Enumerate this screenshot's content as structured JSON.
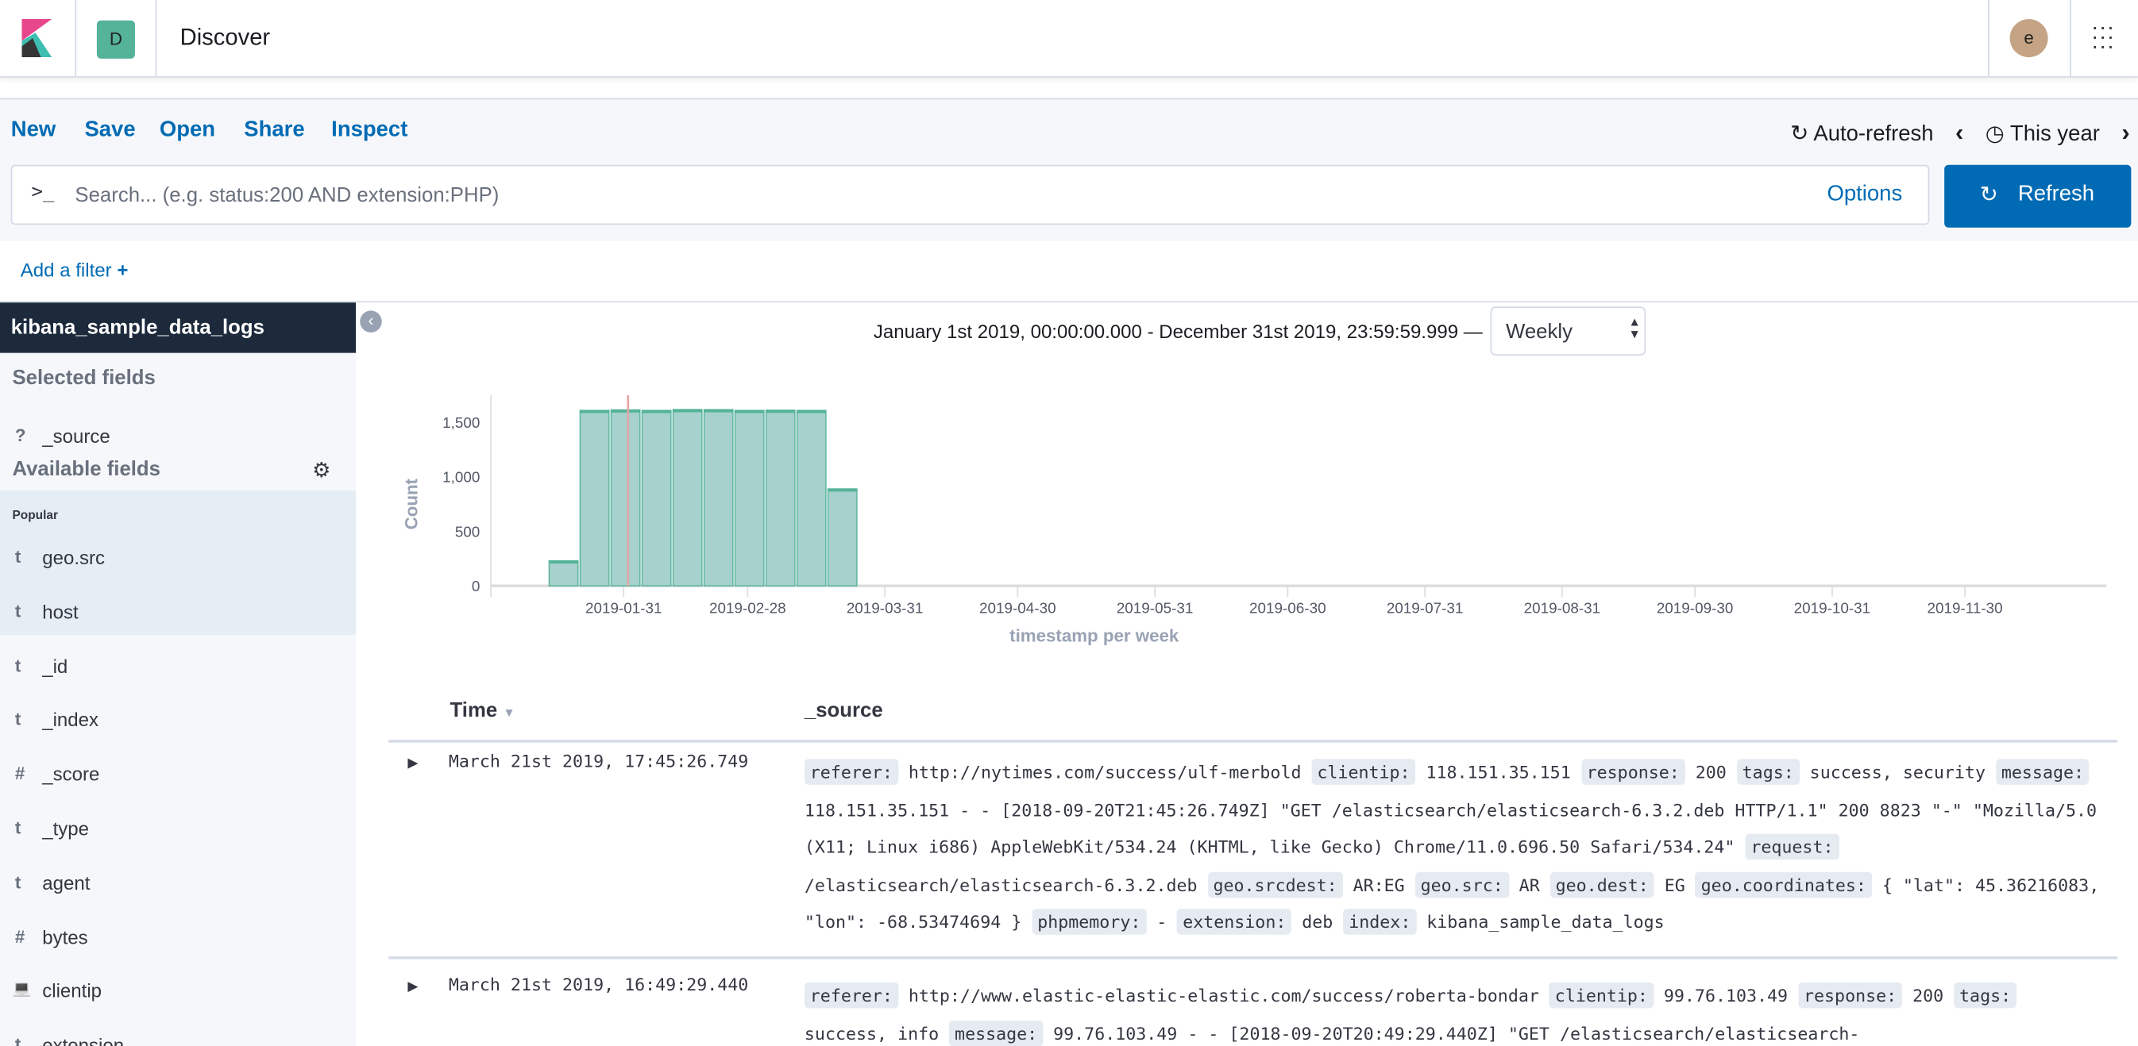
{
  "header": {
    "app_letter": "D",
    "title": "Discover",
    "avatar": "e"
  },
  "menu": {
    "items": [
      "New",
      "Save",
      "Open",
      "Share",
      "Inspect"
    ],
    "auto_refresh": "Auto-refresh",
    "time_range": "This year"
  },
  "search": {
    "placeholder": "Search... (e.g. status:200 AND extension:PHP)",
    "options": "Options",
    "refresh": "Refresh"
  },
  "filter": {
    "add": "Add a filter"
  },
  "sidebar": {
    "index": "kibana_sample_data_logs",
    "selected_title": "Selected fields",
    "selected": [
      {
        "type": "?",
        "name": "_source"
      }
    ],
    "available_title": "Available fields",
    "popular": "Popular",
    "fields": [
      {
        "type": "t",
        "name": "geo.src"
      },
      {
        "type": "t",
        "name": "host"
      },
      {
        "type": "t",
        "name": "_id"
      },
      {
        "type": "t",
        "name": "_index"
      },
      {
        "type": "#",
        "name": "_score"
      },
      {
        "type": "t",
        "name": "_type"
      },
      {
        "type": "t",
        "name": "agent"
      },
      {
        "type": "#",
        "name": "bytes"
      },
      {
        "type": "ip",
        "name": "clientip"
      },
      {
        "type": "t",
        "name": "extension"
      }
    ]
  },
  "histogram": {
    "range": "January 1st 2019, 00:00:00.000 - December 31st 2019, 23:59:59.999 —",
    "interval": "Weekly"
  },
  "chart_data": {
    "type": "bar",
    "xlabel": "timestamp per week",
    "ylabel": "Count",
    "ylim": [
      0,
      1750
    ],
    "xlim": [
      "2019-01-01",
      "2019-12-31"
    ],
    "yticks": [
      "0",
      "500",
      "1,000",
      "1,500"
    ],
    "xticks": [
      "2019-01-31",
      "2019-02-28",
      "2019-03-31",
      "2019-04-30",
      "2019-05-31",
      "2019-06-30",
      "2019-07-31",
      "2019-08-31",
      "2019-09-30",
      "2019-10-31",
      "2019-11-30"
    ],
    "x": [
      "2019-01-14",
      "2019-01-21",
      "2019-01-28",
      "2019-02-04",
      "2019-02-11",
      "2019-02-18",
      "2019-02-25",
      "2019-03-04",
      "2019-03-11",
      "2019-03-18"
    ],
    "values": [
      230,
      1610,
      1615,
      1610,
      1618,
      1617,
      1610,
      1612,
      1610,
      890
    ],
    "current_time_marker": "2019-02-01",
    "bar_color": "#a6d1cd",
    "bar_edge": "#54b399",
    "grid": false
  },
  "table": {
    "headers": [
      "Time",
      "_source"
    ],
    "rows": [
      {
        "time": "March 21st 2019, 17:45:26.749",
        "fields": [
          [
            "referer:",
            "http://nytimes.com/success/ulf-merbold"
          ],
          [
            "clientip:",
            "118.151.35.151"
          ],
          [
            "response:",
            "200"
          ],
          [
            "tags:",
            "success, security"
          ],
          [
            "message:",
            "118.151.35.151 - - [2018-09-20T21:45:26.749Z] \"GET /elasticsearch/elasticsearch-6.3.2.deb HTTP/1.1\" 200 8823 \"-\" \"Mozilla/5.0 (X11; Linux i686) AppleWebKit/534.24 (KHTML, like Gecko) Chrome/11.0.696.50 Safari/534.24\""
          ],
          [
            "request:",
            "/elasticsearch/elasticsearch-6.3.2.deb"
          ],
          [
            "geo.srcdest:",
            "AR:EG"
          ],
          [
            "geo.src:",
            "AR"
          ],
          [
            "geo.dest:",
            "EG"
          ],
          [
            "geo.coordinates:",
            "{ \"lat\": 45.36216083, \"lon\": -68.53474694 }"
          ],
          [
            "phpmemory:",
            " - "
          ],
          [
            "extension:",
            "deb"
          ],
          [
            "index:",
            "kibana_sample_data_logs"
          ]
        ]
      },
      {
        "time": "March 21st 2019, 16:49:29.440",
        "fields": [
          [
            "referer:",
            "http://www.elastic-elastic-elastic.com/success/roberta-bondar"
          ],
          [
            "clientip:",
            "99.76.103.49"
          ],
          [
            "response:",
            "200"
          ],
          [
            "tags:",
            "success, info"
          ],
          [
            "message:",
            "99.76.103.49 - - [2018-09-20T20:49:29.440Z] \"GET /elasticsearch/elasticsearch-"
          ]
        ]
      }
    ]
  }
}
